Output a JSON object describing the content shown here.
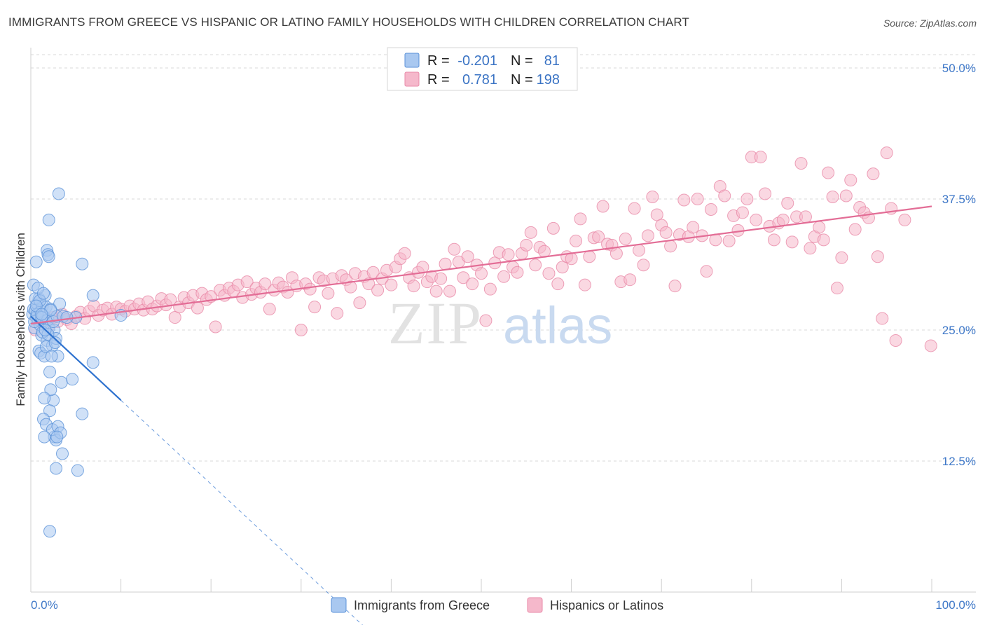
{
  "title": "IMMIGRANTS FROM GREECE VS HISPANIC OR LATINO FAMILY HOUSEHOLDS WITH CHILDREN CORRELATION CHART",
  "source": "Source: ZipAtlas.com",
  "watermark": {
    "zip": "ZIP",
    "atlas": "atlas"
  },
  "colors": {
    "blue_fill": "#a9c8f0",
    "blue_stroke": "#5b92d8",
    "blue_line": "#2e72cf",
    "pink_fill": "#f5b8cb",
    "pink_stroke": "#e98aa8",
    "pink_line": "#e36d96",
    "tick_text": "#3f78c8",
    "grid": "#d9d9d9"
  },
  "legend": {
    "r_label": "R =",
    "n_label": "N =",
    "rows": [
      {
        "r": "-0.201",
        "n": "81",
        "color": "blue"
      },
      {
        "r": "0.781",
        "n": "198",
        "color": "pink"
      }
    ]
  },
  "chart_data": {
    "type": "scatter",
    "title": "IMMIGRANTS FROM GREECE VS HISPANIC OR LATINO FAMILY HOUSEHOLDS WITH CHILDREN CORRELATION CHART",
    "xlabel": "",
    "ylabel": "Family Households with Children",
    "xlim": [
      0,
      100
    ],
    "ylim": [
      0,
      52
    ],
    "x_tick_labels": [
      {
        "value": 0,
        "label": "0.0%"
      },
      {
        "value": 100,
        "label": "100.0%"
      }
    ],
    "y_ticks": [
      {
        "value": 12.5,
        "label": "12.5%"
      },
      {
        "value": 25.0,
        "label": "25.0%"
      },
      {
        "value": 37.5,
        "label": "37.5%"
      },
      {
        "value": 50.0,
        "label": "50.0%"
      }
    ],
    "series": [
      {
        "name": "Immigrants from Greece",
        "color": "blue",
        "r": -0.201,
        "n": 81,
        "trend": {
          "x0": 0,
          "y0": 26.3,
          "x1": 10,
          "y1": 18.3,
          "dash_x1": 40,
          "dash_y1": -5.7
        },
        "points": [
          [
            0.2,
            26.5
          ],
          [
            0.3,
            27.0
          ],
          [
            0.4,
            25.2
          ],
          [
            0.5,
            26.9
          ],
          [
            0.6,
            26.2
          ],
          [
            0.7,
            27.5
          ],
          [
            0.8,
            26.0
          ],
          [
            0.9,
            28.0
          ],
          [
            1.0,
            25.5
          ],
          [
            1.1,
            26.8
          ],
          [
            1.2,
            24.5
          ],
          [
            1.3,
            27.3
          ],
          [
            1.4,
            26.4
          ],
          [
            1.5,
            25.8
          ],
          [
            1.6,
            28.3
          ],
          [
            1.7,
            27.2
          ],
          [
            1.8,
            24.0
          ],
          [
            1.9,
            26.0
          ],
          [
            2.0,
            25.2
          ],
          [
            2.2,
            27.0
          ],
          [
            2.4,
            23.5
          ],
          [
            2.6,
            25.0
          ],
          [
            2.8,
            24.2
          ],
          [
            3.0,
            22.5
          ],
          [
            0.3,
            29.3
          ],
          [
            0.5,
            28.0
          ],
          [
            0.6,
            31.5
          ],
          [
            0.9,
            23.0
          ],
          [
            1.1,
            22.8
          ],
          [
            1.3,
            24.8
          ],
          [
            1.5,
            22.5
          ],
          [
            1.7,
            23.4
          ],
          [
            1.9,
            24.6
          ],
          [
            2.1,
            21.0
          ],
          [
            2.3,
            22.5
          ],
          [
            2.5,
            25.8
          ],
          [
            2.7,
            23.8
          ],
          [
            2.9,
            26.3
          ],
          [
            3.2,
            27.5
          ],
          [
            3.4,
            20.0
          ],
          [
            0.4,
            25.8
          ],
          [
            0.7,
            26.5
          ],
          [
            0.8,
            29.0
          ],
          [
            1.0,
            27.8
          ],
          [
            1.2,
            26.2
          ],
          [
            1.4,
            28.5
          ],
          [
            1.6,
            25.0
          ],
          [
            1.8,
            32.6
          ],
          [
            1.9,
            32.2
          ],
          [
            2.0,
            32.0
          ],
          [
            2.0,
            35.5
          ],
          [
            2.5,
            18.3
          ],
          [
            2.2,
            19.3
          ],
          [
            1.5,
            18.5
          ],
          [
            2.1,
            17.3
          ],
          [
            1.4,
            16.5
          ],
          [
            1.7,
            16.0
          ],
          [
            2.6,
            14.8
          ],
          [
            2.8,
            14.5
          ],
          [
            2.4,
            15.5
          ],
          [
            3.0,
            15.8
          ],
          [
            3.3,
            15.2
          ],
          [
            1.5,
            14.8
          ],
          [
            2.9,
            14.8
          ],
          [
            3.5,
            13.2
          ],
          [
            2.8,
            11.8
          ],
          [
            5.2,
            11.6
          ],
          [
            2.1,
            5.8
          ],
          [
            3.1,
            38.0
          ],
          [
            5.7,
            31.3
          ],
          [
            6.9,
            28.3
          ],
          [
            5.0,
            26.2
          ],
          [
            6.9,
            21.9
          ],
          [
            4.6,
            20.3
          ],
          [
            5.7,
            17.0
          ],
          [
            10.0,
            26.4
          ],
          [
            2.2,
            26.9
          ],
          [
            3.6,
            26.3
          ],
          [
            4.0,
            26.2
          ],
          [
            0.6,
            27.3
          ],
          [
            1.2,
            26.5
          ]
        ]
      },
      {
        "name": "Hispanics or Latinos",
        "color": "pink",
        "r": 0.781,
        "n": 198,
        "trend": {
          "x0": 0,
          "y0": 25.6,
          "x1": 100,
          "y1": 36.8
        },
        "points": [
          [
            0.5,
            25.0
          ],
          [
            1.0,
            26.0
          ],
          [
            1.5,
            25.6
          ],
          [
            2.0,
            25.4
          ],
          [
            2.5,
            26.2
          ],
          [
            3.0,
            25.8
          ],
          [
            3.5,
            26.5
          ],
          [
            4.0,
            26.0
          ],
          [
            4.5,
            25.6
          ],
          [
            5.0,
            26.3
          ],
          [
            5.5,
            26.7
          ],
          [
            6.0,
            26.1
          ],
          [
            6.5,
            26.8
          ],
          [
            7.0,
            27.3
          ],
          [
            7.5,
            26.4
          ],
          [
            8.0,
            26.9
          ],
          [
            8.5,
            27.1
          ],
          [
            9.0,
            26.5
          ],
          [
            9.5,
            27.2
          ],
          [
            10.0,
            27.0
          ],
          [
            10.5,
            26.8
          ],
          [
            11.0,
            27.3
          ],
          [
            11.5,
            27.0
          ],
          [
            12.0,
            27.5
          ],
          [
            12.5,
            26.9
          ],
          [
            13.0,
            27.7
          ],
          [
            13.5,
            27.0
          ],
          [
            14.0,
            27.3
          ],
          [
            14.5,
            28.0
          ],
          [
            15.0,
            27.4
          ],
          [
            15.5,
            27.9
          ],
          [
            16.0,
            26.2
          ],
          [
            16.5,
            27.2
          ],
          [
            17.0,
            28.1
          ],
          [
            17.5,
            27.6
          ],
          [
            18.0,
            28.3
          ],
          [
            18.5,
            27.1
          ],
          [
            19.0,
            28.5
          ],
          [
            19.5,
            27.9
          ],
          [
            20.0,
            28.2
          ],
          [
            20.5,
            25.3
          ],
          [
            21.0,
            28.8
          ],
          [
            21.5,
            28.3
          ],
          [
            22.0,
            29.0
          ],
          [
            22.5,
            28.7
          ],
          [
            23.0,
            29.3
          ],
          [
            23.5,
            28.1
          ],
          [
            24.0,
            29.6
          ],
          [
            24.5,
            28.4
          ],
          [
            25.0,
            29.0
          ],
          [
            25.5,
            28.6
          ],
          [
            26.0,
            29.4
          ],
          [
            26.5,
            27.0
          ],
          [
            27.0,
            28.8
          ],
          [
            27.5,
            29.5
          ],
          [
            28.0,
            29.1
          ],
          [
            28.5,
            28.6
          ],
          [
            29.0,
            30.0
          ],
          [
            29.5,
            29.2
          ],
          [
            30.0,
            25.0
          ],
          [
            30.5,
            29.4
          ],
          [
            31.0,
            28.9
          ],
          [
            31.5,
            27.2
          ],
          [
            32.0,
            30.0
          ],
          [
            32.5,
            29.7
          ],
          [
            33.0,
            28.5
          ],
          [
            33.5,
            29.9
          ],
          [
            34.0,
            26.6
          ],
          [
            34.5,
            30.2
          ],
          [
            35.0,
            29.8
          ],
          [
            35.5,
            29.1
          ],
          [
            36.0,
            30.4
          ],
          [
            36.5,
            27.6
          ],
          [
            37.0,
            30.1
          ],
          [
            37.5,
            29.4
          ],
          [
            38.0,
            30.5
          ],
          [
            38.5,
            28.8
          ],
          [
            39.0,
            29.9
          ],
          [
            39.5,
            30.7
          ],
          [
            40.0,
            29.3
          ],
          [
            40.5,
            31.0
          ],
          [
            41.0,
            31.8
          ],
          [
            41.5,
            32.3
          ],
          [
            42.0,
            30.0
          ],
          [
            42.5,
            29.2
          ],
          [
            43.0,
            30.5
          ],
          [
            43.5,
            31.0
          ],
          [
            44.0,
            29.6
          ],
          [
            44.5,
            30.1
          ],
          [
            45.0,
            28.7
          ],
          [
            45.5,
            29.9
          ],
          [
            46.0,
            31.3
          ],
          [
            46.5,
            28.7
          ],
          [
            47.0,
            32.7
          ],
          [
            47.5,
            31.5
          ],
          [
            48.0,
            30.0
          ],
          [
            48.5,
            32.0
          ],
          [
            49.0,
            29.4
          ],
          [
            49.5,
            31.2
          ],
          [
            50.0,
            30.4
          ],
          [
            50.5,
            25.9
          ],
          [
            51.0,
            28.9
          ],
          [
            51.5,
            31.4
          ],
          [
            52.0,
            32.4
          ],
          [
            52.5,
            30.1
          ],
          [
            53.0,
            32.2
          ],
          [
            53.5,
            31.0
          ],
          [
            54.0,
            30.5
          ],
          [
            54.5,
            32.3
          ],
          [
            55.0,
            33.1
          ],
          [
            55.5,
            34.3
          ],
          [
            56.0,
            31.2
          ],
          [
            56.5,
            32.9
          ],
          [
            57.0,
            32.5
          ],
          [
            57.5,
            30.4
          ],
          [
            58.0,
            34.7
          ],
          [
            58.5,
            29.4
          ],
          [
            59.0,
            31.0
          ],
          [
            59.5,
            32.0
          ],
          [
            60.0,
            31.8
          ],
          [
            60.5,
            33.5
          ],
          [
            61.0,
            35.6
          ],
          [
            61.5,
            29.3
          ],
          [
            62.0,
            32.0
          ],
          [
            62.5,
            33.8
          ],
          [
            63.0,
            33.9
          ],
          [
            63.5,
            36.8
          ],
          [
            64.0,
            33.2
          ],
          [
            64.5,
            33.1
          ],
          [
            65.0,
            32.3
          ],
          [
            65.5,
            29.6
          ],
          [
            66.0,
            33.7
          ],
          [
            66.5,
            29.8
          ],
          [
            67.0,
            36.6
          ],
          [
            67.5,
            32.6
          ],
          [
            68.0,
            31.2
          ],
          [
            68.5,
            34.0
          ],
          [
            69.0,
            37.7
          ],
          [
            69.5,
            36.0
          ],
          [
            70.0,
            35.0
          ],
          [
            70.5,
            34.3
          ],
          [
            71.0,
            33.0
          ],
          [
            71.5,
            29.2
          ],
          [
            72.0,
            34.1
          ],
          [
            72.5,
            37.4
          ],
          [
            73.0,
            33.9
          ],
          [
            73.5,
            34.8
          ],
          [
            74.0,
            37.5
          ],
          [
            74.5,
            34.0
          ],
          [
            75.0,
            30.6
          ],
          [
            75.5,
            36.5
          ],
          [
            76.0,
            33.6
          ],
          [
            76.5,
            38.7
          ],
          [
            77.0,
            37.8
          ],
          [
            77.5,
            33.5
          ],
          [
            78.0,
            35.9
          ],
          [
            78.5,
            34.5
          ],
          [
            79.0,
            36.2
          ],
          [
            79.5,
            37.5
          ],
          [
            80.0,
            41.5
          ],
          [
            80.5,
            35.5
          ],
          [
            81.0,
            41.5
          ],
          [
            81.5,
            38.0
          ],
          [
            82.0,
            34.9
          ],
          [
            82.5,
            33.6
          ],
          [
            83.0,
            35.2
          ],
          [
            83.5,
            35.5
          ],
          [
            84.0,
            37.1
          ],
          [
            84.5,
            33.4
          ],
          [
            85.0,
            35.8
          ],
          [
            85.5,
            40.9
          ],
          [
            86.0,
            35.8
          ],
          [
            86.5,
            32.8
          ],
          [
            87.0,
            33.9
          ],
          [
            87.5,
            34.8
          ],
          [
            88.0,
            33.6
          ],
          [
            88.5,
            40.0
          ],
          [
            89.0,
            37.7
          ],
          [
            89.5,
            29.0
          ],
          [
            90.0,
            31.9
          ],
          [
            90.5,
            37.8
          ],
          [
            91.0,
            39.3
          ],
          [
            91.5,
            34.6
          ],
          [
            92.0,
            36.7
          ],
          [
            92.5,
            36.2
          ],
          [
            93.0,
            35.7
          ],
          [
            93.5,
            39.9
          ],
          [
            94.0,
            32.0
          ],
          [
            94.5,
            26.1
          ],
          [
            95.0,
            41.9
          ],
          [
            95.5,
            36.6
          ],
          [
            96.0,
            24.0
          ],
          [
            99.9,
            23.5
          ],
          [
            97.0,
            35.5
          ]
        ]
      }
    ]
  },
  "bottom_legend": [
    {
      "label": "Immigrants from Greece",
      "color": "blue"
    },
    {
      "label": "Hispanics or Latinos",
      "color": "pink"
    }
  ]
}
